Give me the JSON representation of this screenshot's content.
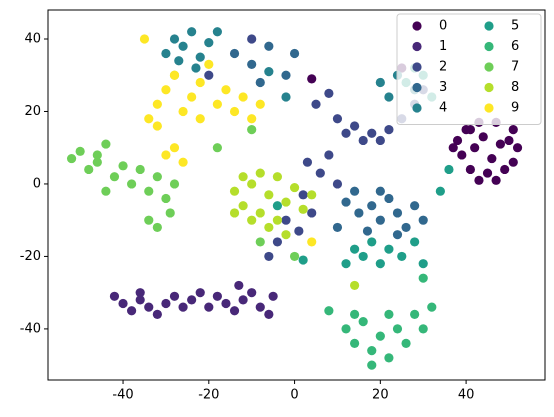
{
  "chart_data": {
    "type": "scatter",
    "xlim": [
      -57.5,
      58.4
    ],
    "ylim": [
      -54.1,
      48
    ],
    "xticks": [
      -40,
      -20,
      0,
      20,
      40
    ],
    "yticks": [
      -40,
      -20,
      0,
      20,
      40
    ],
    "legend": "upper right",
    "legend_columns": 2,
    "series": [
      {
        "name": "0",
        "color": "#440154",
        "x": [
          38,
          39,
          40,
          41,
          43,
          45,
          47,
          49,
          51,
          52,
          51,
          42,
          48,
          44,
          46,
          50,
          37,
          43,
          47,
          41,
          25,
          4
        ],
        "y": [
          12,
          8,
          15,
          4,
          17,
          3,
          17,
          4,
          15,
          10,
          6,
          10,
          11,
          13,
          7,
          12,
          10,
          1,
          1,
          15,
          32,
          29
        ]
      },
      {
        "name": "1",
        "color": "#482878",
        "x": [
          -42,
          -40,
          -38,
          -36,
          -34,
          -32,
          -30,
          -28,
          -26,
          -24,
          -20,
          -18,
          -16,
          -14,
          -12,
          -10,
          -8,
          -6,
          -5,
          -13,
          -22,
          -36
        ],
        "y": [
          -31,
          -33,
          -35,
          -32,
          -34,
          -36,
          -33,
          -31,
          -34,
          -32,
          -34,
          -31,
          -33,
          -35,
          -32,
          -30,
          -34,
          -36,
          -31,
          -28,
          -30,
          -30
        ]
      },
      {
        "name": "2",
        "color": "#3e4989",
        "x": [
          5,
          8,
          10,
          12,
          14,
          16,
          18,
          20,
          22,
          25,
          28,
          30,
          3,
          6,
          8,
          10,
          2,
          -2,
          -4,
          -6,
          1,
          4,
          -20,
          -10
        ],
        "y": [
          22,
          25,
          18,
          14,
          16,
          12,
          14,
          12,
          15,
          18,
          22,
          26,
          6,
          3,
          8,
          0,
          -3,
          -10,
          -16,
          -20,
          -13,
          -8,
          30,
          40
        ]
      },
      {
        "name": "3",
        "color": "#31688e",
        "x": [
          12,
          15,
          18,
          20,
          22,
          24,
          26,
          28,
          30,
          17,
          14,
          -14,
          -10,
          -6,
          -2,
          0,
          -8,
          24,
          10,
          20
        ],
        "y": [
          -5,
          -8,
          -6,
          -10,
          -4,
          -8,
          -12,
          -6,
          -10,
          -13,
          -2,
          36,
          33,
          38,
          30,
          36,
          28,
          -14,
          -12,
          -2
        ]
      },
      {
        "name": "4",
        "color": "#26828e",
        "x": [
          -30,
          -28,
          -26,
          -24,
          -22,
          -20,
          -18,
          -27,
          -23,
          20,
          24,
          28,
          22,
          -6,
          -2
        ],
        "y": [
          36,
          40,
          38,
          42,
          35,
          39,
          42,
          34,
          32,
          28,
          30,
          26,
          24,
          31,
          24
        ]
      },
      {
        "name": "5",
        "color": "#1f9e89",
        "x": [
          14,
          16,
          18,
          20,
          22,
          25,
          28,
          30,
          12,
          26,
          30,
          28,
          32,
          36,
          34,
          -4,
          2
        ],
        "y": [
          -18,
          -20,
          -16,
          -22,
          -18,
          -20,
          -16,
          -22,
          -22,
          28,
          30,
          32,
          24,
          4,
          -2,
          -6,
          -21
        ]
      },
      {
        "name": "6",
        "color": "#35b779",
        "x": [
          12,
          14,
          16,
          18,
          20,
          22,
          24,
          26,
          28,
          30,
          32,
          18,
          14,
          22,
          30,
          8
        ],
        "y": [
          -40,
          -44,
          -38,
          -46,
          -42,
          -48,
          -40,
          -44,
          -36,
          -40,
          -34,
          -50,
          -36,
          -36,
          -26,
          -35
        ]
      },
      {
        "name": "7",
        "color": "#6ece58",
        "x": [
          -52,
          -50,
          -48,
          -46,
          -44,
          -42,
          -40,
          -38,
          -36,
          -34,
          -32,
          -30,
          -28,
          -34,
          -32,
          -29,
          -44,
          -46,
          -18,
          -10,
          -8,
          0
        ],
        "y": [
          7,
          9,
          4,
          6,
          11,
          2,
          5,
          0,
          4,
          -2,
          2,
          -4,
          0,
          -10,
          -12,
          -8,
          -2,
          8,
          10,
          15,
          -16,
          -20
        ]
      },
      {
        "name": "8",
        "color": "#b5de2b",
        "x": [
          -14,
          -12,
          -10,
          -8,
          -6,
          -4,
          -2,
          0,
          2,
          4,
          -12,
          -8,
          -6,
          -10,
          -2,
          -14,
          -4,
          -28,
          14
        ],
        "y": [
          -2,
          -6,
          0,
          -8,
          -3,
          -10,
          -5,
          -1,
          -7,
          -3,
          2,
          3,
          -12,
          -10,
          -14,
          -8,
          2,
          30,
          -28
        ]
      },
      {
        "name": "9",
        "color": "#fde725",
        "x": [
          -34,
          -32,
          -30,
          -28,
          -26,
          -24,
          -22,
          -20,
          -18,
          -16,
          -14,
          -12,
          -10,
          -30,
          -28,
          -26,
          -32,
          -22,
          -8,
          -35,
          4
        ],
        "y": [
          18,
          22,
          26,
          30,
          20,
          24,
          28,
          33,
          22,
          26,
          20,
          24,
          18,
          8,
          10,
          6,
          16,
          18,
          22,
          40,
          -16
        ]
      }
    ]
  }
}
